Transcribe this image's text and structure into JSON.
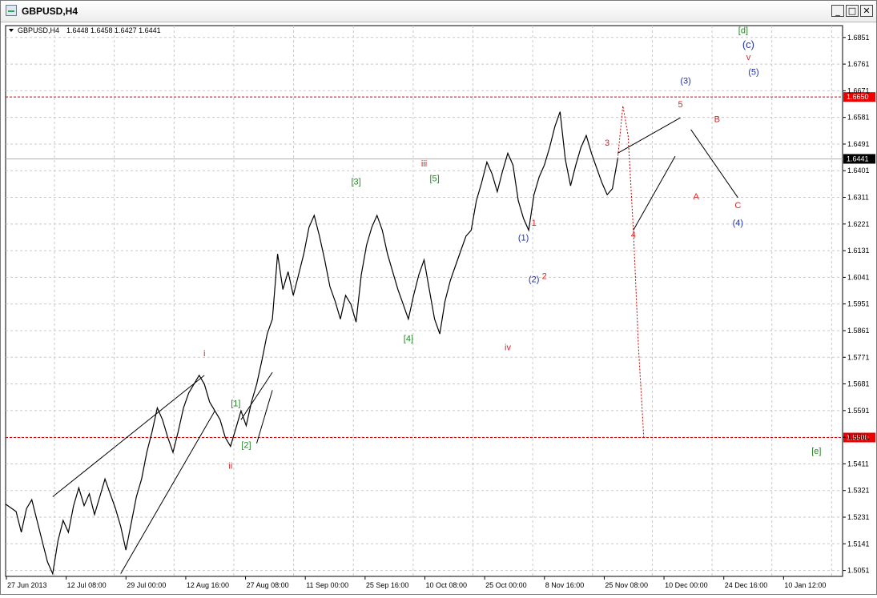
{
  "window": {
    "title": "GBPUSD,H4",
    "controls": {
      "minimize": "_",
      "restore": "□",
      "close": "✕"
    }
  },
  "chart_header": {
    "symbol": "GBPUSD,H4",
    "ohlc": "1.6448 1.6458 1.6427 1.6441"
  },
  "colors": {
    "red_label": "#dd2222",
    "green_label": "#228822",
    "blue_label": "#2233aa",
    "price_badge": "#ee0000",
    "current_badge": "#000000"
  },
  "chart_data": {
    "type": "line",
    "ylim": [
      1.5031,
      1.6891
    ],
    "y_ticks": [
      "1.6851",
      "1.6761",
      "1.6671",
      "1.6581",
      "1.6491",
      "1.6401",
      "1.6311",
      "1.6221",
      "1.6131",
      "1.6041",
      "1.5951",
      "1.5861",
      "1.5771",
      "1.5681",
      "1.5591",
      "1.5501",
      "1.5411",
      "1.5321",
      "1.5231",
      "1.5141",
      "1.5051"
    ],
    "x_ticks": [
      "27 Jun 2013",
      "12 Jul 08:00",
      "29 Jul 00:00",
      "12 Aug 16:00",
      "27 Aug 08:00",
      "11 Sep 00:00",
      "25 Sep 16:00",
      "10 Oct 08:00",
      "25 Oct 00:00",
      "8 Nov 16:00",
      "25 Nov 08:00",
      "10 Dec 00:00",
      "24 Dec 16:00",
      "10 Jan 12:00"
    ],
    "price_path": [
      [
        0,
        1.5275
      ],
      [
        2,
        1.525
      ],
      [
        3,
        1.518
      ],
      [
        4,
        1.526
      ],
      [
        5,
        1.529
      ],
      [
        6,
        1.522
      ],
      [
        7,
        1.515
      ],
      [
        8,
        1.508
      ],
      [
        9,
        1.504
      ],
      [
        10,
        1.515
      ],
      [
        11,
        1.522
      ],
      [
        12,
        1.518
      ],
      [
        13,
        1.527
      ],
      [
        14,
        1.533
      ],
      [
        15,
        1.527
      ],
      [
        16,
        1.531
      ],
      [
        17,
        1.524
      ],
      [
        18,
        1.53
      ],
      [
        19,
        1.536
      ],
      [
        20,
        1.531
      ],
      [
        21,
        1.526
      ],
      [
        22,
        1.52
      ],
      [
        23,
        1.512
      ],
      [
        24,
        1.521
      ],
      [
        25,
        1.53
      ],
      [
        26,
        1.536
      ],
      [
        27,
        1.545
      ],
      [
        28,
        1.552
      ],
      [
        29,
        1.56
      ],
      [
        30,
        1.556
      ],
      [
        31,
        1.55
      ],
      [
        32,
        1.545
      ],
      [
        33,
        1.552
      ],
      [
        34,
        1.56
      ],
      [
        35,
        1.565
      ],
      [
        36,
        1.568
      ],
      [
        37,
        1.571
      ],
      [
        38,
        1.568
      ],
      [
        39,
        1.562
      ],
      [
        40,
        1.559
      ],
      [
        41,
        1.556
      ],
      [
        42,
        1.55
      ],
      [
        43,
        1.547
      ],
      [
        44,
        1.553
      ],
      [
        45,
        1.559
      ],
      [
        46,
        1.554
      ],
      [
        47,
        1.562
      ],
      [
        48,
        1.568
      ],
      [
        49,
        1.576
      ],
      [
        50,
        1.585
      ],
      [
        51,
        1.59
      ],
      [
        52,
        1.612
      ],
      [
        53,
        1.6
      ],
      [
        54,
        1.606
      ],
      [
        55,
        1.598
      ],
      [
        56,
        1.605
      ],
      [
        57,
        1.612
      ],
      [
        58,
        1.621
      ],
      [
        59,
        1.625
      ],
      [
        60,
        1.618
      ],
      [
        61,
        1.61
      ],
      [
        62,
        1.601
      ],
      [
        63,
        1.596
      ],
      [
        64,
        1.59
      ],
      [
        65,
        1.598
      ],
      [
        66,
        1.595
      ],
      [
        67,
        1.589
      ],
      [
        68,
        1.605
      ],
      [
        69,
        1.615
      ],
      [
        70,
        1.621
      ],
      [
        71,
        1.625
      ],
      [
        72,
        1.62
      ],
      [
        73,
        1.612
      ],
      [
        74,
        1.606
      ],
      [
        75,
        1.6
      ],
      [
        76,
        1.595
      ],
      [
        77,
        1.59
      ],
      [
        78,
        1.598
      ],
      [
        79,
        1.605
      ],
      [
        80,
        1.61
      ],
      [
        81,
        1.6
      ],
      [
        82,
        1.59
      ],
      [
        83,
        1.585
      ],
      [
        84,
        1.596
      ],
      [
        85,
        1.603
      ],
      [
        86,
        1.608
      ],
      [
        87,
        1.613
      ],
      [
        88,
        1.618
      ],
      [
        89,
        1.62
      ],
      [
        90,
        1.63
      ],
      [
        91,
        1.636
      ],
      [
        92,
        1.643
      ],
      [
        93,
        1.639
      ],
      [
        94,
        1.633
      ],
      [
        95,
        1.64
      ],
      [
        96,
        1.646
      ],
      [
        97,
        1.642
      ],
      [
        98,
        1.63
      ],
      [
        99,
        1.624
      ],
      [
        100,
        1.62
      ],
      [
        101,
        1.632
      ],
      [
        102,
        1.638
      ],
      [
        103,
        1.642
      ],
      [
        104,
        1.648
      ],
      [
        105,
        1.655
      ],
      [
        106,
        1.66
      ],
      [
        107,
        1.644
      ],
      [
        108,
        1.635
      ],
      [
        109,
        1.642
      ],
      [
        110,
        1.648
      ],
      [
        111,
        1.652
      ],
      [
        112,
        1.646
      ],
      [
        113,
        1.641
      ],
      [
        114,
        1.636
      ],
      [
        115,
        1.632
      ],
      [
        116,
        1.634
      ],
      [
        117,
        1.6441
      ]
    ],
    "projection_path": [
      [
        117,
        1.6441
      ],
      [
        118,
        1.662
      ],
      [
        119,
        1.652
      ],
      [
        120,
        1.62
      ],
      [
        121,
        1.58
      ],
      [
        122,
        1.55
      ]
    ],
    "horizontal_levels": [
      {
        "value": 1.665,
        "label": "1.6650"
      },
      {
        "value": 1.55,
        "label": "1.5500"
      }
    ],
    "current_price": {
      "value": 1.6441,
      "label": "1.6441"
    },
    "wave_labels": [
      {
        "text": "i",
        "x": 38,
        "y": 1.5775,
        "color": "red"
      },
      {
        "text": "ii",
        "x": 43,
        "y": 1.5395,
        "color": "red"
      },
      {
        "text": "iii",
        "x": 80,
        "y": 1.6415,
        "color": "red"
      },
      {
        "text": "iv",
        "x": 96,
        "y": 1.5795,
        "color": "red"
      },
      {
        "text": "v",
        "x": 142,
        "y": 1.6775,
        "color": "red"
      },
      {
        "text": "[1]",
        "x": 44,
        "y": 1.5605,
        "color": "green"
      },
      {
        "text": "[2]",
        "x": 46,
        "y": 1.5465,
        "color": "green"
      },
      {
        "text": "[3]",
        "x": 67,
        "y": 1.6355,
        "color": "green"
      },
      {
        "text": "[4]",
        "x": 77,
        "y": 1.5825,
        "color": "green"
      },
      {
        "text": "[5]",
        "x": 82,
        "y": 1.6365,
        "color": "green"
      },
      {
        "text": "[d]",
        "x": 141,
        "y": 1.6865,
        "color": "green"
      },
      {
        "text": "[e]",
        "x": 155,
        "y": 1.5445,
        "color": "green"
      },
      {
        "text": "(1)",
        "x": 99,
        "y": 1.6165,
        "color": "blue"
      },
      {
        "text": "(2)",
        "x": 101,
        "y": 1.6025,
        "color": "blue"
      },
      {
        "text": "(3)",
        "x": 130,
        "y": 1.6695,
        "color": "blue"
      },
      {
        "text": "(4)",
        "x": 140,
        "y": 1.6215,
        "color": "blue"
      },
      {
        "text": "(5)",
        "x": 143,
        "y": 1.6725,
        "color": "blue"
      },
      {
        "text": "(c)",
        "x": 142,
        "y": 1.6815,
        "color": "blue"
      },
      {
        "text": "1",
        "x": 101,
        "y": 1.6215,
        "color": "red"
      },
      {
        "text": "2",
        "x": 103,
        "y": 1.6035,
        "color": "red"
      },
      {
        "text": "3",
        "x": 115,
        "y": 1.6485,
        "color": "red"
      },
      {
        "text": "4",
        "x": 120,
        "y": 1.6175,
        "color": "red"
      },
      {
        "text": "5",
        "x": 129,
        "y": 1.6615,
        "color": "red"
      },
      {
        "text": "A",
        "x": 132,
        "y": 1.6305,
        "color": "red"
      },
      {
        "text": "B",
        "x": 136,
        "y": 1.6565,
        "color": "red"
      },
      {
        "text": "C",
        "x": 140,
        "y": 1.6275,
        "color": "red"
      }
    ]
  }
}
